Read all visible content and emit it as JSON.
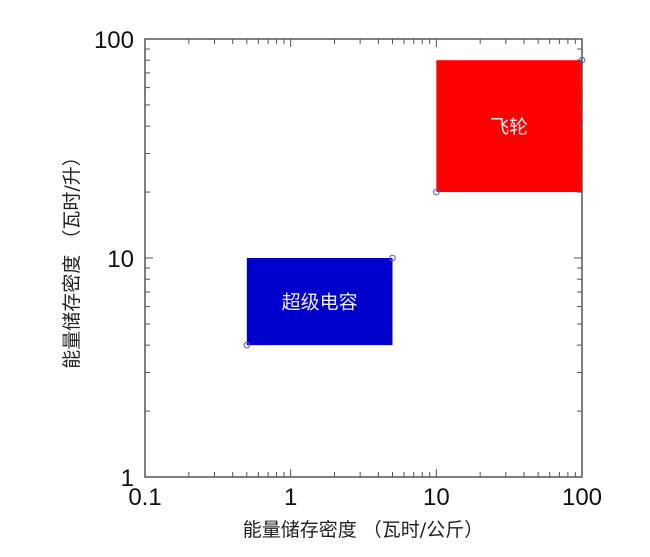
{
  "chart_data": {
    "type": "area",
    "subtype": "log-log region (Ragone-style) plot",
    "title": "",
    "xlabel": "能量储存密度 （瓦时/公斤）",
    "ylabel": "能量储存密度 （瓦时/升）",
    "xscale": "log",
    "yscale": "log",
    "xlim": [
      0.1,
      100
    ],
    "ylim": [
      1,
      100
    ],
    "xticks": [
      0.1,
      1,
      10,
      100
    ],
    "xtick_labels": [
      "0.1",
      "1",
      "10",
      "100"
    ],
    "yticks": [
      1,
      10,
      100
    ],
    "ytick_labels": [
      "1",
      "10",
      "100"
    ],
    "grid": false,
    "legend": null,
    "regions": [
      {
        "name": "超级电容",
        "x": [
          0.5,
          5
        ],
        "y": [
          4,
          10
        ],
        "color": "#0000cc",
        "label_color": "#f0f0f0"
      },
      {
        "name": "飞轮",
        "x": [
          10,
          100
        ],
        "y": [
          20,
          80
        ],
        "color": "#ff0000",
        "label_color": "#f0f0f0"
      }
    ],
    "markers": [
      {
        "x": 0.5,
        "y": 4
      },
      {
        "x": 5,
        "y": 10
      },
      {
        "x": 10,
        "y": 20
      },
      {
        "x": 100,
        "y": 80
      }
    ],
    "marker_color": "#5555cc"
  }
}
